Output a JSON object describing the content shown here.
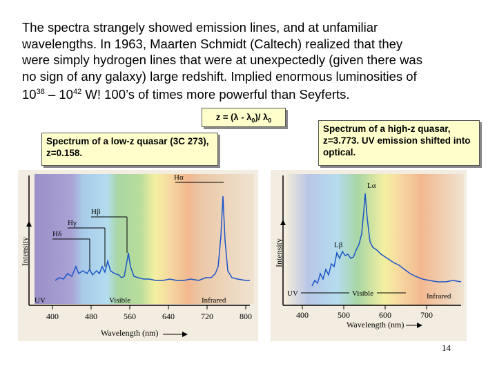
{
  "paragraph": {
    "line1": "The spectra strangely showed emission lines, and at unfamiliar",
    "line2": "wavelengths.  In 1963, Maarten Schmidt (Caltech) realized that they",
    "line3": "were simply hydrogen lines that were at unexpectedly (given there was",
    "line4": "no sign of any galaxy) large redshift.  Implied enormous luminosities of",
    "line5_base1": "10",
    "line5_exp1": "38",
    "line5_mid": " – 10",
    "line5_exp2": "42",
    "line5_end": " W!  100’s of times more powerful than Seyferts."
  },
  "formula": {
    "lhs": "z = (λ - λ",
    "sub1": "0",
    "mid": ")/ λ",
    "sub2": "0"
  },
  "low_z_box": {
    "text": "Spectrum of a low-z quasar (3C 273), z=0.158."
  },
  "high_z_box": {
    "text": "Spectrum of a high-z quasar, z=3.773. UV emission shifted into optical."
  },
  "low_z_plot": {
    "y_label": "Intensity",
    "x_label": "Wavelength (nm)",
    "ticks": [
      "400",
      "480",
      "560",
      "640",
      "720",
      "800"
    ],
    "region_uv": "UV",
    "region_visible": "Visible",
    "region_infrared": "Infrared",
    "line_alpha": "Hα",
    "line_beta": "Hβ",
    "line_gamma": "Hγ",
    "line_delta": "Hδ"
  },
  "high_z_plot": {
    "y_label": "Intensity",
    "x_label": "Wavelength (nm)",
    "ticks": [
      "400",
      "500",
      "600",
      "700"
    ],
    "region_uv": "UV",
    "region_visible": "Visible",
    "region_infrared": "Infrared",
    "line_alpha": "Lα",
    "line_beta": "Lβ"
  },
  "slide_number": "14",
  "colors": {
    "box_fill": "#ffffcc",
    "spectrum_line": "#1b54c8"
  }
}
